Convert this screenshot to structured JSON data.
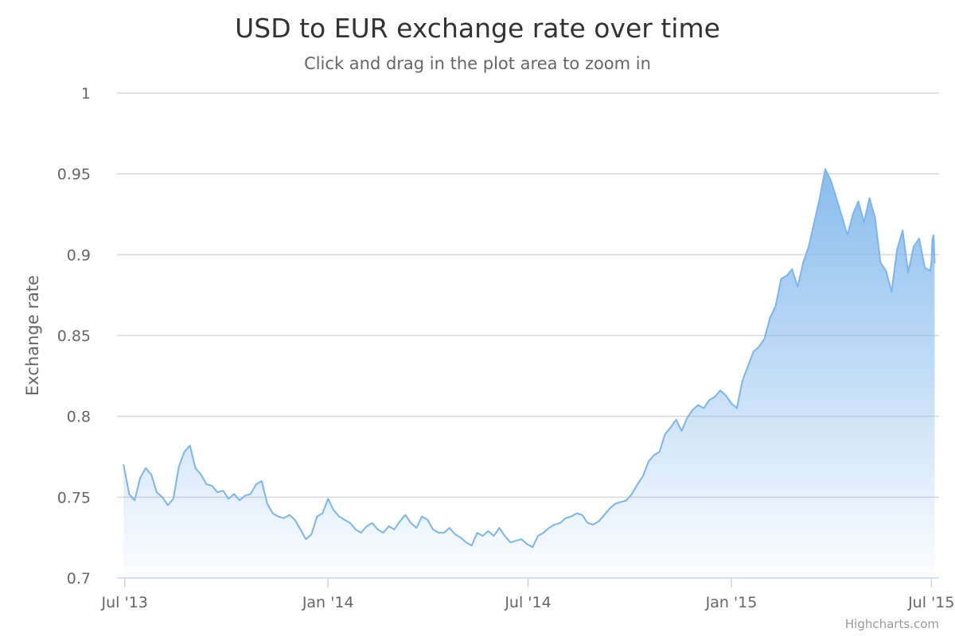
{
  "chart_data": {
    "type": "area",
    "title": "USD to EUR exchange rate over time",
    "subtitle": "Click and drag in the plot area to zoom in",
    "ylabel": "Exchange rate",
    "xlabel": "",
    "ylim": [
      0.7,
      1.0
    ],
    "yticks": [
      0.7,
      0.75,
      0.8,
      0.85,
      0.9,
      0.95,
      1
    ],
    "ytick_labels": [
      "0.7",
      "0.75",
      "0.8",
      "0.85",
      "0.9",
      "0.95",
      "1"
    ],
    "xlim": [
      "2013-06-24",
      "2015-07-08"
    ],
    "xticks": [
      {
        "date": "2013-07-01",
        "label": "Jul '13"
      },
      {
        "date": "2014-01-01",
        "label": "Jan '14"
      },
      {
        "date": "2014-07-01",
        "label": "Jul '14"
      },
      {
        "date": "2015-01-01",
        "label": "Jan '15"
      },
      {
        "date": "2015-07-01",
        "label": "Jul '15"
      }
    ],
    "grid": true,
    "legend": false,
    "colors": {
      "line": "#7cb5ec",
      "fill_top": "#7cb5ec",
      "title": "#333333",
      "text": "#666666",
      "grid": "#d8d8d8",
      "axis": "#ccd6eb"
    },
    "series": [
      {
        "x": [
          "2013-06-30",
          "2013-07-05",
          "2013-07-10",
          "2013-07-15",
          "2013-07-20",
          "2013-07-25",
          "2013-07-30",
          "2013-08-04",
          "2013-08-09",
          "2013-08-14",
          "2013-08-19",
          "2013-08-24",
          "2013-08-29",
          "2013-09-03",
          "2013-09-08",
          "2013-09-13",
          "2013-09-18",
          "2013-09-23",
          "2013-09-28",
          "2013-10-03",
          "2013-10-08",
          "2013-10-13",
          "2013-10-18",
          "2013-10-23",
          "2013-10-28",
          "2013-11-02",
          "2013-11-07",
          "2013-11-12",
          "2013-11-17",
          "2013-11-22",
          "2013-11-27",
          "2013-12-02",
          "2013-12-07",
          "2013-12-12",
          "2013-12-17",
          "2013-12-22",
          "2013-12-27",
          "2014-01-01",
          "2014-01-06",
          "2014-01-11",
          "2014-01-16",
          "2014-01-21",
          "2014-01-26",
          "2014-01-31",
          "2014-02-05",
          "2014-02-10",
          "2014-02-15",
          "2014-02-20",
          "2014-02-25",
          "2014-03-02",
          "2014-03-07",
          "2014-03-12",
          "2014-03-17",
          "2014-03-22",
          "2014-03-27",
          "2014-04-01",
          "2014-04-06",
          "2014-04-11",
          "2014-04-16",
          "2014-04-21",
          "2014-04-26",
          "2014-05-01",
          "2014-05-06",
          "2014-05-11",
          "2014-05-16",
          "2014-05-21",
          "2014-05-26",
          "2014-05-31",
          "2014-06-05",
          "2014-06-10",
          "2014-06-15",
          "2014-06-20",
          "2014-06-25",
          "2014-06-30",
          "2014-07-05",
          "2014-07-10",
          "2014-07-15",
          "2014-07-20",
          "2014-07-25",
          "2014-07-30",
          "2014-08-04",
          "2014-08-09",
          "2014-08-14",
          "2014-08-19",
          "2014-08-24",
          "2014-08-29",
          "2014-09-03",
          "2014-09-08",
          "2014-09-13",
          "2014-09-18",
          "2014-09-23",
          "2014-09-28",
          "2014-10-03",
          "2014-10-08",
          "2014-10-13",
          "2014-10-18",
          "2014-10-23",
          "2014-10-28",
          "2014-11-02",
          "2014-11-07",
          "2014-11-12",
          "2014-11-17",
          "2014-11-22",
          "2014-11-27",
          "2014-12-02",
          "2014-12-07",
          "2014-12-12",
          "2014-12-17",
          "2014-12-22",
          "2014-12-27",
          "2015-01-01",
          "2015-01-06",
          "2015-01-11",
          "2015-01-16",
          "2015-01-21",
          "2015-01-26",
          "2015-01-31",
          "2015-02-05",
          "2015-02-10",
          "2015-02-15",
          "2015-02-20",
          "2015-02-25",
          "2015-03-02",
          "2015-03-07",
          "2015-03-12",
          "2015-03-17",
          "2015-03-22",
          "2015-03-27",
          "2015-04-01",
          "2015-04-06",
          "2015-04-11",
          "2015-04-16",
          "2015-04-21",
          "2015-04-26",
          "2015-05-01",
          "2015-05-06",
          "2015-05-11",
          "2015-05-16",
          "2015-05-21",
          "2015-05-26",
          "2015-05-31",
          "2015-06-05",
          "2015-06-10",
          "2015-06-15",
          "2015-06-20",
          "2015-06-25",
          "2015-06-30",
          "2015-07-01",
          "2015-07-02",
          "2015-07-03",
          "2015-07-04"
        ],
        "values": [
          0.77,
          0.752,
          0.748,
          0.762,
          0.768,
          0.764,
          0.753,
          0.75,
          0.745,
          0.749,
          0.769,
          0.778,
          0.782,
          0.768,
          0.764,
          0.758,
          0.757,
          0.753,
          0.754,
          0.749,
          0.752,
          0.748,
          0.751,
          0.752,
          0.758,
          0.76,
          0.746,
          0.74,
          0.738,
          0.737,
          0.739,
          0.736,
          0.73,
          0.724,
          0.727,
          0.738,
          0.74,
          0.749,
          0.742,
          0.738,
          0.736,
          0.734,
          0.73,
          0.728,
          0.732,
          0.734,
          0.73,
          0.728,
          0.732,
          0.73,
          0.735,
          0.739,
          0.734,
          0.731,
          0.738,
          0.736,
          0.73,
          0.728,
          0.728,
          0.731,
          0.727,
          0.725,
          0.722,
          0.72,
          0.728,
          0.726,
          0.729,
          0.726,
          0.731,
          0.726,
          0.722,
          0.723,
          0.724,
          0.721,
          0.719,
          0.726,
          0.728,
          0.731,
          0.733,
          0.734,
          0.737,
          0.738,
          0.74,
          0.739,
          0.734,
          0.733,
          0.735,
          0.739,
          0.743,
          0.746,
          0.747,
          0.748,
          0.752,
          0.758,
          0.763,
          0.772,
          0.776,
          0.778,
          0.789,
          0.793,
          0.798,
          0.791,
          0.799,
          0.804,
          0.807,
          0.805,
          0.81,
          0.812,
          0.816,
          0.813,
          0.808,
          0.805,
          0.822,
          0.831,
          0.84,
          0.843,
          0.848,
          0.861,
          0.868,
          0.885,
          0.887,
          0.891,
          0.88,
          0.895,
          0.905,
          0.92,
          0.935,
          0.953,
          0.946,
          0.935,
          0.924,
          0.912,
          0.925,
          0.933,
          0.92,
          0.935,
          0.923,
          0.895,
          0.89,
          0.877,
          0.903,
          0.915,
          0.889,
          0.905,
          0.91,
          0.892,
          0.89,
          0.895,
          0.91,
          0.912,
          0.895
        ]
      }
    ]
  },
  "credits": "Highcharts.com"
}
